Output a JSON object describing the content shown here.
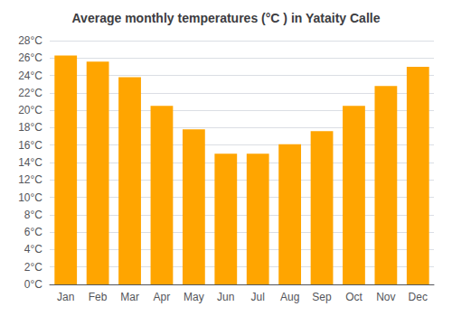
{
  "chart_data": {
    "type": "bar",
    "title": "Average monthly temperatures (°C ) in Yataity Calle",
    "categories": [
      "Jan",
      "Feb",
      "Mar",
      "Apr",
      "May",
      "Jun",
      "Jul",
      "Aug",
      "Sep",
      "Oct",
      "Nov",
      "Dec"
    ],
    "values": [
      26.3,
      25.6,
      23.8,
      20.5,
      17.8,
      15.0,
      15.0,
      16.1,
      17.6,
      20.5,
      22.8,
      25.0
    ],
    "color": "#FFA500",
    "ylim": [
      0,
      28
    ],
    "yticks": [
      {
        "value": 0,
        "label": "0°C"
      },
      {
        "value": 2,
        "label": "2°C"
      },
      {
        "value": 4,
        "label": "4°C"
      },
      {
        "value": 6,
        "label": "6°C"
      },
      {
        "value": 8,
        "label": "8°C"
      },
      {
        "value": 10,
        "label": "10°C"
      },
      {
        "value": 12,
        "label": "12°C"
      },
      {
        "value": 14,
        "label": "14°C"
      },
      {
        "value": 16,
        "label": "16°C"
      },
      {
        "value": 18,
        "label": "18°C"
      },
      {
        "value": 20,
        "label": "20°C"
      },
      {
        "value": 22,
        "label": "22°C"
      },
      {
        "value": 24,
        "label": "24°C"
      },
      {
        "value": 26,
        "label": "26°C"
      },
      {
        "value": 28,
        "label": "28°C"
      }
    ],
    "grid": true
  }
}
